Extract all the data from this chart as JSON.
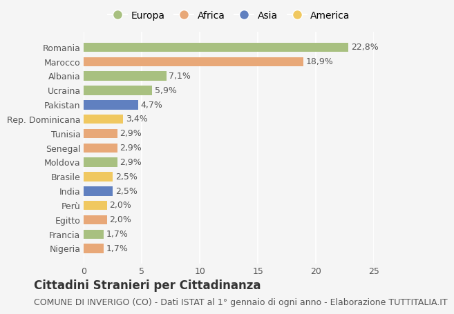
{
  "countries": [
    "Nigeria",
    "Francia",
    "Egitto",
    "Perù",
    "India",
    "Brasile",
    "Moldova",
    "Senegal",
    "Tunisia",
    "Rep. Dominicana",
    "Pakistan",
    "Ucraina",
    "Albania",
    "Marocco",
    "Romania"
  ],
  "values": [
    1.7,
    1.7,
    2.0,
    2.0,
    2.5,
    2.5,
    2.9,
    2.9,
    2.9,
    3.4,
    4.7,
    5.9,
    7.1,
    18.9,
    22.8
  ],
  "labels": [
    "1,7%",
    "1,7%",
    "2,0%",
    "2,0%",
    "2,5%",
    "2,5%",
    "2,9%",
    "2,9%",
    "2,9%",
    "3,4%",
    "4,7%",
    "5,9%",
    "7,1%",
    "18,9%",
    "22,8%"
  ],
  "continents": [
    "Africa",
    "Europa",
    "Africa",
    "America",
    "Asia",
    "America",
    "Europa",
    "Africa",
    "Africa",
    "America",
    "Asia",
    "Europa",
    "Europa",
    "Africa",
    "Europa"
  ],
  "colors": {
    "Europa": "#a8c080",
    "Africa": "#e8a878",
    "Asia": "#6080c0",
    "America": "#f0c860"
  },
  "legend_order": [
    "Europa",
    "Africa",
    "Asia",
    "America"
  ],
  "background_color": "#f5f5f5",
  "xlim": [
    0,
    25
  ],
  "xticks": [
    0,
    5,
    10,
    15,
    20,
    25
  ],
  "title": "Cittadini Stranieri per Cittadinanza",
  "subtitle": "COMUNE DI INVERIGO (CO) - Dati ISTAT al 1° gennaio di ogni anno - Elaborazione TUTTITALIA.IT",
  "title_fontsize": 12,
  "subtitle_fontsize": 9,
  "bar_height": 0.65,
  "label_fontsize": 9,
  "tick_fontsize": 9
}
